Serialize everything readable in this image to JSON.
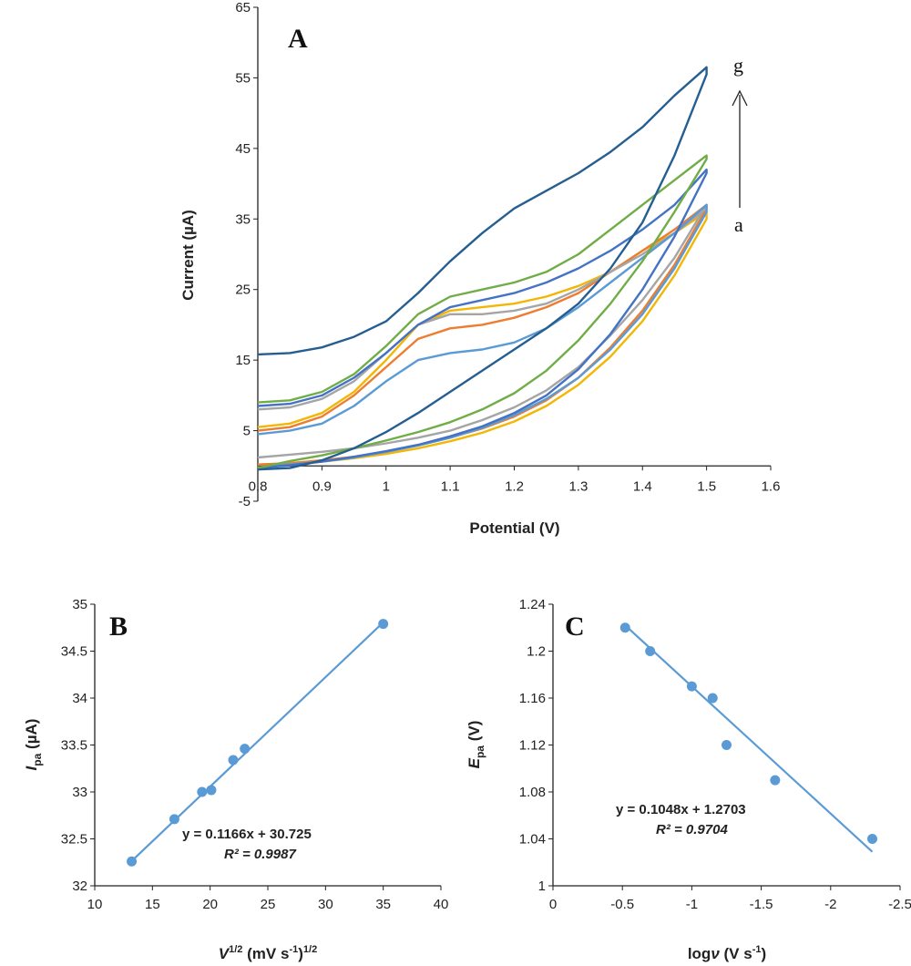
{
  "chart_data": [
    {
      "panel": "A",
      "type": "line",
      "xlabel": "Potential (V)",
      "ylabel": "Current (µA)",
      "xlim": [
        0.8,
        1.6
      ],
      "ylim": [
        -5,
        65
      ],
      "xticks": [
        "0.8",
        "0.9",
        "1",
        "1.1",
        "1.2",
        "1.3",
        "1.4",
        "1.5",
        "1.6"
      ],
      "yticks": [
        "-5",
        "5",
        "15",
        "25",
        "35",
        "45",
        "55",
        "65"
      ],
      "grid": false,
      "arrow_bottom_label": "a",
      "arrow_top_label": "g",
      "series": [
        {
          "color": "#f2b705",
          "forward_x": [
            0.8,
            0.85,
            0.9,
            0.95,
            1.0,
            1.05,
            1.1,
            1.15,
            1.2,
            1.25,
            1.3,
            1.35,
            1.4,
            1.45,
            1.5
          ],
          "forward_y": [
            5.5,
            6.0,
            7.5,
            10.5,
            15.0,
            20.0,
            22.0,
            22.5,
            23.0,
            24.0,
            25.5,
            27.5,
            30.5,
            33.0,
            36.0
          ],
          "reverse_x": [
            1.5,
            1.45,
            1.4,
            1.35,
            1.3,
            1.25,
            1.2,
            1.15,
            1.1,
            1.05,
            1.0,
            0.95,
            0.9,
            0.85,
            0.8
          ],
          "reverse_y": [
            35.0,
            27.0,
            20.5,
            15.5,
            11.5,
            8.5,
            6.3,
            4.7,
            3.5,
            2.5,
            1.7,
            1.1,
            0.6,
            0.3,
            0.2
          ]
        },
        {
          "color": "#ed7d31",
          "forward_x": [
            0.8,
            0.85,
            0.9,
            0.95,
            1.0,
            1.05,
            1.1,
            1.15,
            1.2,
            1.25,
            1.3,
            1.35,
            1.4,
            1.45,
            1.5
          ],
          "forward_y": [
            5.0,
            5.5,
            7.0,
            10.0,
            14.0,
            18.0,
            19.5,
            20.0,
            21.0,
            22.5,
            24.5,
            27.5,
            30.5,
            33.5,
            37.0
          ],
          "reverse_x": [
            1.5,
            1.45,
            1.4,
            1.35,
            1.3,
            1.25,
            1.2,
            1.15,
            1.1,
            1.05,
            1.0,
            0.95,
            0.9,
            0.85,
            0.8
          ],
          "reverse_y": [
            36.5,
            28.5,
            22.0,
            16.8,
            12.5,
            9.3,
            7.0,
            5.3,
            4.0,
            2.9,
            2.0,
            1.3,
            0.8,
            0.4,
            0.2
          ]
        },
        {
          "color": "#a5a5a5",
          "forward_x": [
            0.8,
            0.85,
            0.9,
            0.95,
            1.0,
            1.05,
            1.1,
            1.15,
            1.2,
            1.25,
            1.3,
            1.35,
            1.4,
            1.45,
            1.5
          ],
          "forward_y": [
            8.0,
            8.3,
            9.5,
            12.0,
            16.0,
            20.0,
            21.5,
            21.5,
            22.0,
            23.0,
            25.0,
            27.5,
            30.0,
            33.0,
            36.5
          ],
          "reverse_x": [
            1.5,
            1.45,
            1.4,
            1.35,
            1.3,
            1.25,
            1.2,
            1.15,
            1.1,
            1.05,
            1.0,
            0.95,
            0.9,
            0.85,
            0.8
          ],
          "reverse_y": [
            37.0,
            29.5,
            23.5,
            18.5,
            14.0,
            10.7,
            8.3,
            6.5,
            5.0,
            4.0,
            3.2,
            2.5,
            2.0,
            1.6,
            1.2
          ]
        },
        {
          "color": "#5b9bd5",
          "forward_x": [
            0.8,
            0.85,
            0.9,
            0.95,
            1.0,
            1.05,
            1.1,
            1.15,
            1.2,
            1.25,
            1.3,
            1.35,
            1.4,
            1.45,
            1.5
          ],
          "forward_y": [
            4.5,
            5.0,
            6.0,
            8.5,
            12.0,
            15.0,
            16.0,
            16.5,
            17.5,
            19.5,
            22.5,
            26.0,
            29.5,
            33.0,
            37.0
          ],
          "reverse_x": [
            1.5,
            1.45,
            1.4,
            1.35,
            1.3,
            1.25,
            1.2,
            1.15,
            1.1,
            1.05,
            1.0,
            0.95,
            0.9,
            0.85,
            0.8
          ],
          "reverse_y": [
            36.0,
            28.0,
            21.5,
            16.5,
            12.5,
            9.5,
            7.2,
            5.4,
            4.0,
            2.9,
            2.0,
            1.2,
            0.6,
            0.2,
            -0.2
          ]
        },
        {
          "color": "#4472c4",
          "forward_x": [
            0.8,
            0.85,
            0.9,
            0.95,
            1.0,
            1.05,
            1.1,
            1.15,
            1.2,
            1.25,
            1.3,
            1.35,
            1.4,
            1.45,
            1.5
          ],
          "forward_y": [
            8.5,
            8.8,
            10.0,
            12.5,
            16.0,
            20.0,
            22.5,
            23.5,
            24.5,
            26.0,
            28.0,
            30.5,
            33.5,
            37.0,
            42.0
          ],
          "reverse_x": [
            1.5,
            1.45,
            1.4,
            1.35,
            1.3,
            1.25,
            1.2,
            1.15,
            1.1,
            1.05,
            1.0,
            0.95,
            0.9,
            0.85,
            0.8
          ],
          "reverse_y": [
            41.5,
            32.5,
            25.0,
            18.7,
            13.7,
            10.0,
            7.5,
            5.6,
            4.2,
            3.0,
            2.1,
            1.3,
            0.6,
            0.1,
            -0.3
          ]
        },
        {
          "color": "#70ad47",
          "forward_x": [
            0.8,
            0.85,
            0.9,
            0.95,
            1.0,
            1.05,
            1.1,
            1.15,
            1.2,
            1.25,
            1.3,
            1.35,
            1.4,
            1.45,
            1.5
          ],
          "forward_y": [
            9.0,
            9.3,
            10.5,
            13.0,
            17.0,
            21.5,
            24.0,
            25.0,
            26.0,
            27.5,
            30.0,
            33.5,
            37.0,
            40.5,
            44.0
          ],
          "reverse_x": [
            1.5,
            1.45,
            1.4,
            1.35,
            1.3,
            1.25,
            1.2,
            1.15,
            1.1,
            1.05,
            1.0,
            0.95,
            0.9,
            0.85,
            0.8
          ],
          "reverse_y": [
            43.5,
            36.0,
            29.0,
            23.0,
            17.8,
            13.5,
            10.3,
            8.0,
            6.2,
            4.8,
            3.6,
            2.5,
            1.5,
            0.7,
            -0.3
          ]
        },
        {
          "color": "#255e91",
          "forward_x": [
            0.8,
            0.85,
            0.9,
            0.95,
            1.0,
            1.05,
            1.1,
            1.15,
            1.2,
            1.25,
            1.3,
            1.35,
            1.4,
            1.45,
            1.5
          ],
          "forward_y": [
            15.8,
            16.0,
            16.8,
            18.3,
            20.5,
            24.5,
            29.0,
            33.0,
            36.5,
            39.0,
            41.5,
            44.5,
            48.0,
            52.5,
            56.5
          ],
          "reverse_x": [
            1.5,
            1.45,
            1.4,
            1.35,
            1.3,
            1.25,
            1.2,
            1.15,
            1.1,
            1.05,
            1.0,
            0.95,
            0.9,
            0.85,
            0.8
          ],
          "reverse_y": [
            55.5,
            44.0,
            34.5,
            28.0,
            23.0,
            19.5,
            16.5,
            13.5,
            10.5,
            7.5,
            4.8,
            2.5,
            0.8,
            -0.3,
            -0.5
          ]
        }
      ]
    },
    {
      "panel": "B",
      "type": "scatter",
      "xlabel": "V1/2 (mV s-1)1/2",
      "ylabel": "Ipa (µA)",
      "xlim": [
        10,
        40
      ],
      "ylim": [
        32,
        35
      ],
      "xticks": [
        "10",
        "15",
        "20",
        "25",
        "30",
        "35",
        "40"
      ],
      "yticks": [
        "32",
        "32.5",
        "33",
        "33.5",
        "34",
        "34.5",
        "35"
      ],
      "x": [
        13.2,
        16.9,
        19.3,
        20.1,
        22.0,
        23.0,
        35.0
      ],
      "y": [
        32.26,
        32.71,
        33.0,
        33.02,
        33.34,
        33.46,
        34.79
      ],
      "trendline": {
        "slope": 0.1166,
        "intercept": 30.725,
        "x_range": [
          13.2,
          35.0
        ]
      },
      "equation": "y = 0.1166x + 30.725",
      "r2": "R² = 0.9987",
      "grid": false
    },
    {
      "panel": "C",
      "type": "scatter",
      "xlabel": "logν (V s-1)",
      "ylabel": "Epa (V)",
      "xlim": [
        0,
        -2.5
      ],
      "ylim": [
        1,
        1.24
      ],
      "xticks": [
        "0",
        "-0.5",
        "-1",
        "-1.5",
        "-2",
        "-2.5"
      ],
      "yticks": [
        "1",
        "1.04",
        "1.08",
        "1.12",
        "1.16",
        "1.2",
        "1.24"
      ],
      "x": [
        -0.52,
        -0.7,
        -1.0,
        -1.15,
        -1.25,
        -1.6,
        -2.3
      ],
      "y": [
        1.22,
        1.2,
        1.17,
        1.16,
        1.12,
        1.09,
        1.04
      ],
      "trendline": {
        "slope": 0.1048,
        "intercept": 1.2703,
        "x_range": [
          -0.52,
          -2.3
        ]
      },
      "equation": "y = 0.1048x + 1.2703",
      "r2": "R² = 0.9704",
      "grid": false
    }
  ],
  "marker_color": "#5b9bd5",
  "trend_color": "#5b9bd5"
}
